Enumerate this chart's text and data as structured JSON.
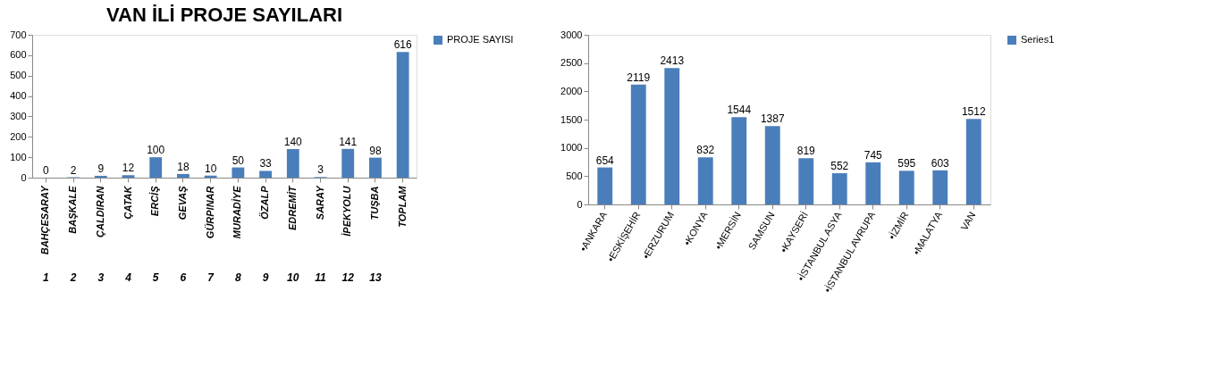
{
  "chart_data": [
    {
      "type": "bar",
      "title": "VAN İLİ  PROJE SAYILARI",
      "categories": [
        "BAHÇESARAY",
        "BAŞKALE",
        "ÇALDIRAN",
        "ÇATAK",
        "ERCİŞ",
        "GEVAŞ",
        "GÜRPINAR",
        "MURADİYE",
        "ÖZALP",
        "EDREMİT",
        "SARAY",
        "İPEKYOLU",
        "TUŞBA",
        "TOPLAM"
      ],
      "series": [
        {
          "name": "PROJE SAYISI",
          "color": "#4a7ebb",
          "values": [
            0,
            2,
            9,
            12,
            100,
            18,
            10,
            50,
            33,
            140,
            3,
            141,
            98,
            616
          ]
        }
      ],
      "ylim": [
        0,
        700
      ],
      "yticks": [
        0,
        100,
        200,
        300,
        400,
        500,
        600,
        700
      ],
      "data_labels": true,
      "legend": "right",
      "grid": false,
      "annotations": [
        "1",
        "2",
        "3",
        "4",
        "5",
        "6",
        "7",
        "8",
        "9",
        "10",
        "11",
        "12",
        "13"
      ]
    },
    {
      "type": "bar",
      "categories": [
        "•ANKARA",
        "•ESKİŞEHİR",
        "•ERZURUM",
        "•KONYA",
        "•MERSİN",
        "SAMSUN",
        "•KAYSERİ",
        "•İSTANBUL  ASYA",
        "•İSTANBUL  AVRUPA",
        "•İZMİR",
        "•MALATYA",
        "VAN"
      ],
      "series": [
        {
          "name": "Series1",
          "color": "#4a7ebb",
          "values": [
            654,
            2119,
            2413,
            832,
            1544,
            1387,
            819,
            552,
            745,
            595,
            603,
            1512
          ]
        }
      ],
      "ylim": [
        0,
        3000
      ],
      "yticks": [
        0,
        500,
        1000,
        1500,
        2000,
        2500,
        3000
      ],
      "data_labels": true,
      "legend": "right",
      "grid": false
    }
  ]
}
